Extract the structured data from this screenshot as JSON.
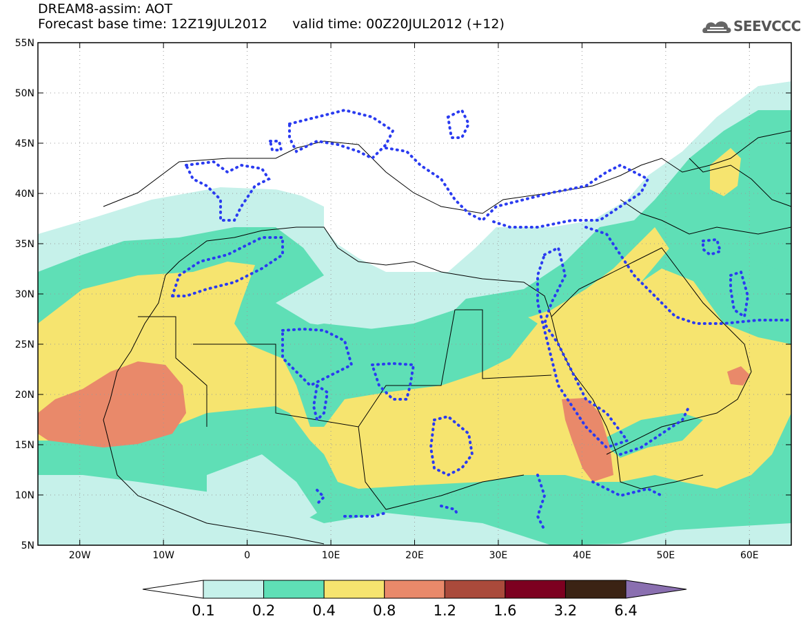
{
  "header": {
    "title_line1": "DREAM8-assim: AOT",
    "title_line2": "Forecast base time: 12Z19JUL2012      valid time: 00Z20JUL2012 (+12)",
    "logo_text": "SEEVCCC"
  },
  "map": {
    "lon_range": [
      -25,
      65
    ],
    "lat_range": [
      5,
      55
    ],
    "lat_ticks": [
      {
        "value": 55,
        "label": "55N"
      },
      {
        "value": 50,
        "label": "50N"
      },
      {
        "value": 45,
        "label": "45N"
      },
      {
        "value": 40,
        "label": "40N"
      },
      {
        "value": 35,
        "label": "35N"
      },
      {
        "value": 30,
        "label": "30N"
      },
      {
        "value": 25,
        "label": "25N"
      },
      {
        "value": 20,
        "label": "20N"
      },
      {
        "value": 15,
        "label": "15N"
      },
      {
        "value": 10,
        "label": "10N"
      },
      {
        "value": 5,
        "label": "5N"
      }
    ],
    "lon_ticks": [
      {
        "value": -20,
        "label": "20W"
      },
      {
        "value": -10,
        "label": "10W"
      },
      {
        "value": 0,
        "label": "0"
      },
      {
        "value": 10,
        "label": "10E"
      },
      {
        "value": 20,
        "label": "20E"
      },
      {
        "value": 30,
        "label": "30E"
      },
      {
        "value": 40,
        "label": "40E"
      },
      {
        "value": 50,
        "label": "50E"
      },
      {
        "value": 60,
        "label": "60E"
      }
    ],
    "grid": true,
    "contour_color": "#2a3bf0"
  },
  "colorbar": {
    "levels": [
      "0.1",
      "0.2",
      "0.4",
      "0.8",
      "1.2",
      "1.6",
      "3.2",
      "6.4"
    ],
    "colors": [
      "#ffffff",
      "#c6f1ea",
      "#5fdfb6",
      "#f6e46f",
      "#e9896a",
      "#aa4a3b",
      "#7d0020",
      "#3b2314",
      "#8a6fb0"
    ]
  }
}
